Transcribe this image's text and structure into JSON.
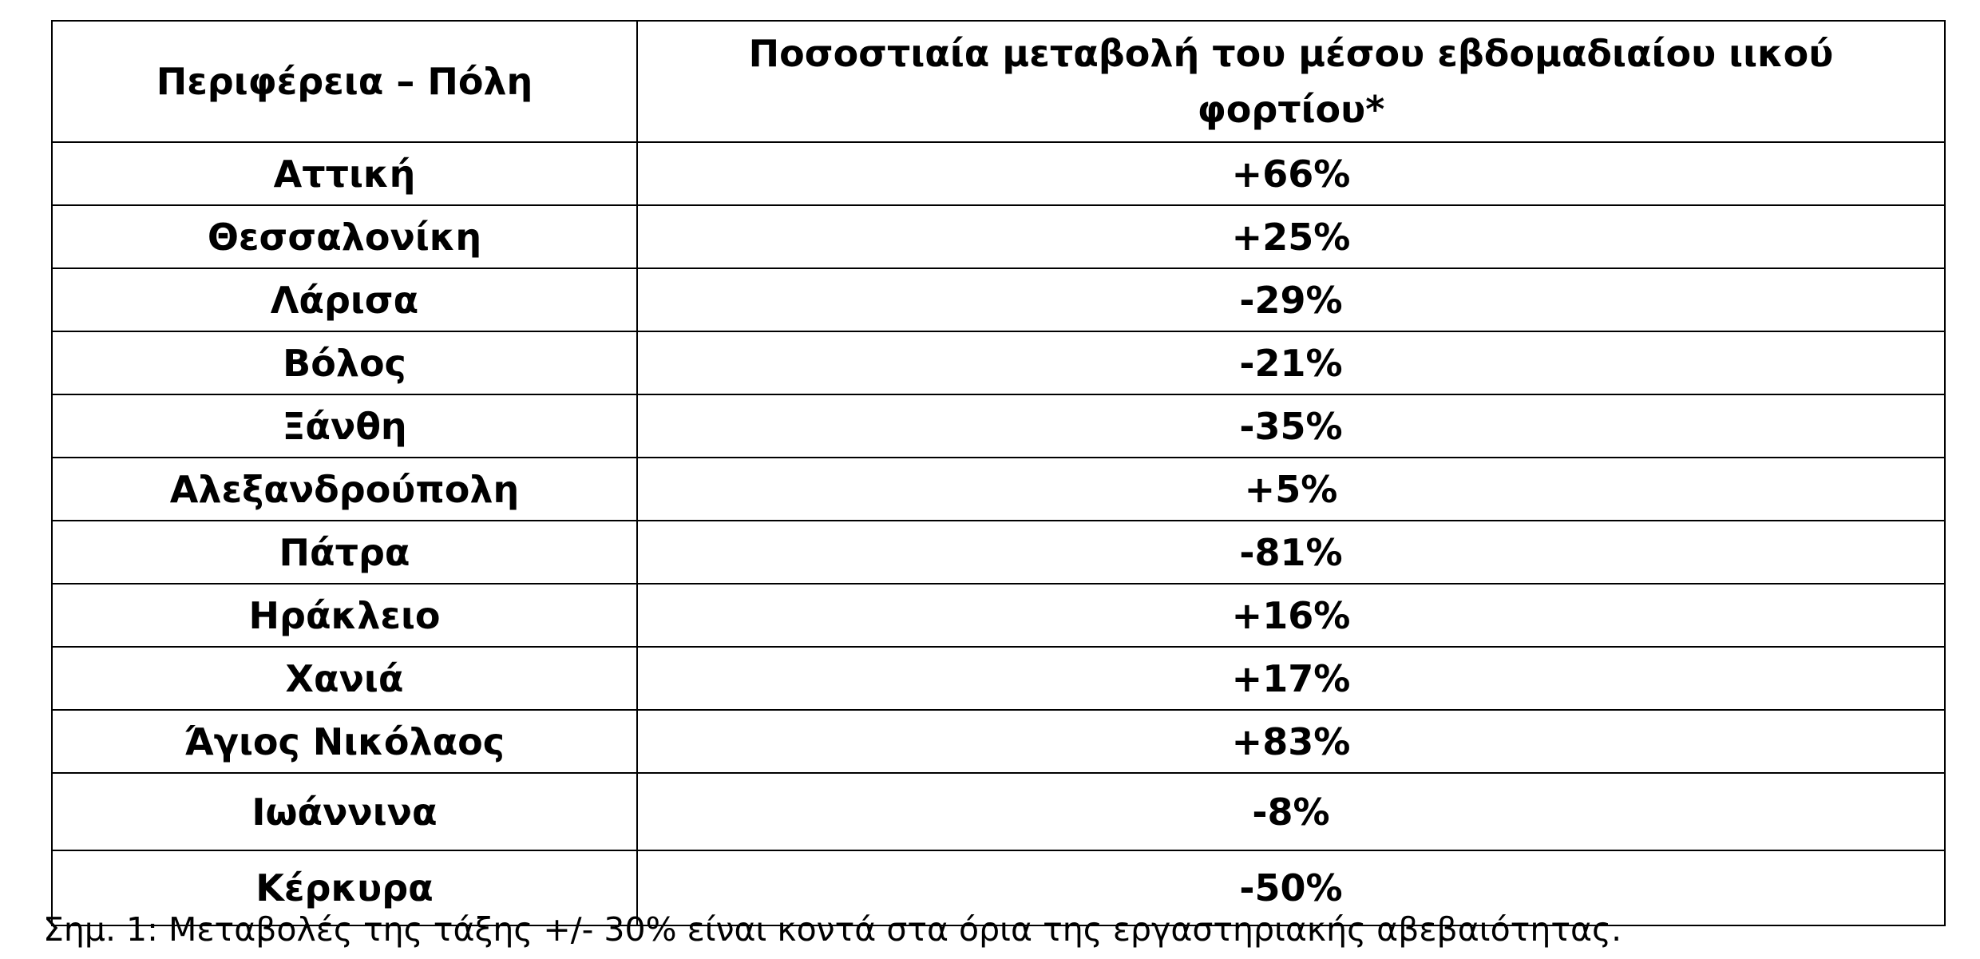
{
  "table": {
    "columns": [
      "Περιφέρεια – Πόλη",
      "Ποσοστιαία μεταβολή του μέσου εβδομαδιαίου ιικού φορτίου*"
    ],
    "rows": [
      [
        "Αττική",
        "+66%"
      ],
      [
        "Θεσσαλονίκη",
        "+25%"
      ],
      [
        "Λάρισα",
        "-29%"
      ],
      [
        "Βόλος",
        "-21%"
      ],
      [
        "Ξάνθη",
        "-35%"
      ],
      [
        "Αλεξανδρούπολη",
        "+5%"
      ],
      [
        "Πάτρα",
        "-81%"
      ],
      [
        "Ηράκλειο",
        "+16%"
      ],
      [
        "Χανιά",
        "+17%"
      ],
      [
        "Άγιος Νικόλαος",
        "+83%"
      ],
      [
        "Ιωάννινα",
        "-8%"
      ],
      [
        "Κέρκυρα",
        "-50%"
      ]
    ]
  },
  "footnote": "Σημ. 1: Μεταβολές της τάξης +/- 30% είναι κοντά στα όρια της εργαστηριακής αβεβαιότητας."
}
